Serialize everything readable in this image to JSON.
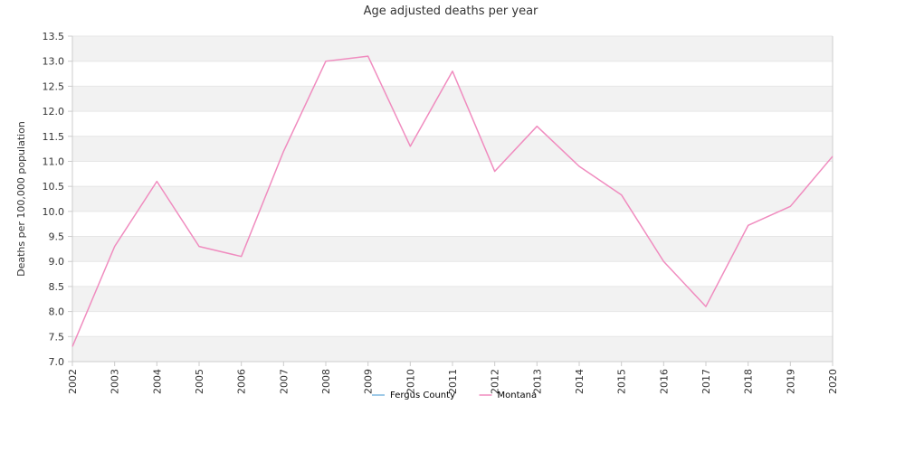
{
  "chart_data": {
    "type": "line",
    "title": "Age adjusted deaths per year",
    "xlabel": "",
    "ylabel": "Deaths per 100,000 population",
    "x": [
      "2002",
      "2003",
      "2004",
      "2005",
      "2006",
      "2007",
      "2008",
      "2009",
      "2010",
      "2011",
      "2012",
      "2013",
      "2014",
      "2015",
      "2016",
      "2017",
      "2018",
      "2019",
      "2020"
    ],
    "ylim": [
      7.0,
      13.5
    ],
    "yticks": [
      "7.0",
      "7.5",
      "8.0",
      "8.5",
      "9.0",
      "9.5",
      "10.0",
      "10.5",
      "11.0",
      "11.5",
      "12.0",
      "12.5",
      "13.0",
      "13.5"
    ],
    "grid": "horizontal bands",
    "legend_position": "bottom",
    "series": [
      {
        "name": "Fergus County",
        "color": "#7fb8e0",
        "values": [
          null,
          null,
          null,
          null,
          null,
          null,
          null,
          null,
          null,
          null,
          null,
          null,
          null,
          null,
          null,
          null,
          null,
          null,
          null
        ]
      },
      {
        "name": "Montana",
        "color": "#f08cbf",
        "values": [
          7.3,
          9.3,
          10.6,
          9.3,
          9.1,
          11.2,
          13.0,
          13.1,
          11.3,
          12.8,
          10.8,
          11.7,
          10.9,
          10.33,
          9.0,
          8.1,
          9.72,
          10.1,
          11.1
        ]
      }
    ],
    "colors": {
      "band": "#f2f2f2",
      "axis": "#cccccc",
      "text": "#333333"
    }
  }
}
